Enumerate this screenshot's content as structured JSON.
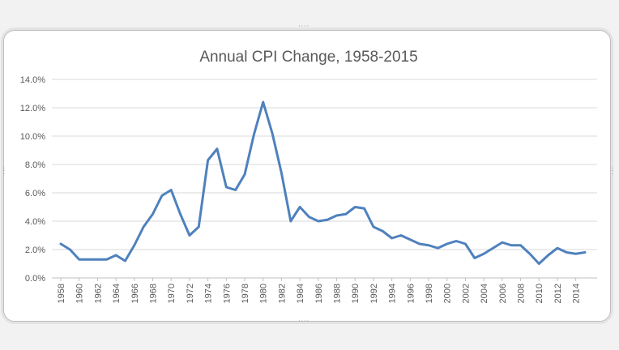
{
  "chart_data": {
    "type": "line",
    "title": "Annual CPI Change, 1958-2015",
    "xlabel": "",
    "ylabel": "",
    "ylim": [
      0,
      14
    ],
    "y_ticks": [
      "0.0%",
      "2.0%",
      "4.0%",
      "6.0%",
      "8.0%",
      "10.0%",
      "12.0%",
      "14.0%"
    ],
    "x_tick_labels": [
      "1958",
      "1960",
      "1962",
      "1964",
      "1966",
      "1968",
      "1970",
      "1972",
      "1974",
      "1976",
      "1978",
      "1980",
      "1982",
      "1984",
      "1986",
      "1988",
      "1990",
      "1992",
      "1994",
      "1996",
      "1998",
      "2000",
      "2002",
      "2004",
      "2006",
      "2008",
      "2010",
      "2012",
      "2014"
    ],
    "grid": true,
    "legend": "none",
    "series": [
      {
        "color": "#4f81bd",
        "x": [
          1958,
          1959,
          1960,
          1961,
          1962,
          1963,
          1964,
          1965,
          1966,
          1967,
          1968,
          1969,
          1970,
          1971,
          1972,
          1973,
          1974,
          1975,
          1976,
          1977,
          1978,
          1979,
          1980,
          1981,
          1982,
          1983,
          1984,
          1985,
          1986,
          1987,
          1988,
          1989,
          1990,
          1991,
          1992,
          1993,
          1994,
          1995,
          1996,
          1997,
          1998,
          1999,
          2000,
          2001,
          2002,
          2003,
          2004,
          2005,
          2006,
          2007,
          2008,
          2009,
          2010,
          2011,
          2012,
          2013,
          2014,
          2015
        ],
        "values": [
          2.4,
          2.0,
          1.3,
          1.3,
          1.3,
          1.3,
          1.6,
          1.2,
          2.3,
          3.6,
          4.5,
          5.8,
          6.2,
          4.5,
          3.0,
          3.6,
          8.3,
          9.1,
          6.4,
          6.2,
          7.3,
          10.1,
          12.4,
          10.2,
          7.4,
          4.0,
          5.0,
          4.3,
          4.0,
          4.1,
          4.4,
          4.5,
          5.0,
          4.9,
          3.6,
          3.3,
          2.8,
          3.0,
          2.7,
          2.4,
          2.3,
          2.1,
          2.4,
          2.6,
          2.4,
          1.4,
          1.7,
          2.1,
          2.5,
          2.3,
          2.3,
          1.7,
          1.0,
          1.6,
          2.1,
          1.8,
          1.7,
          1.8
        ]
      }
    ]
  }
}
